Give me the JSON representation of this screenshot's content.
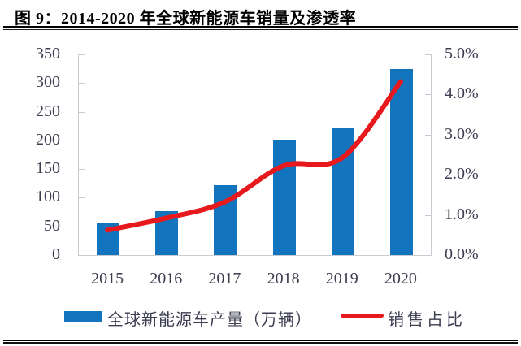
{
  "title": "图 9：2014-2020 年全球新能源车销量及渗透率",
  "colors": {
    "bar": "#1374be",
    "line": "#e8191d",
    "axis_text": "#3d3d52",
    "axis_line": "#c9cbd2",
    "title_text": "#000000"
  },
  "chart_data": {
    "type": "bar",
    "subtype": "bar+line combo, dual y-axis",
    "title": "图 9：2014-2020 年全球新能源车销量及渗透率",
    "categories": [
      "2015",
      "2016",
      "2017",
      "2018",
      "2019",
      "2020"
    ],
    "series": [
      {
        "name": "全球新能源车产量（万辆）",
        "type": "bar",
        "axis": "left",
        "color": "#1374be",
        "values": [
          55,
          77,
          122,
          201,
          221,
          325
        ]
      },
      {
        "name": "销售占比",
        "type": "line",
        "axis": "right",
        "color": "#e8191d",
        "values": [
          0.6,
          0.9,
          1.3,
          2.2,
          2.4,
          4.3
        ]
      }
    ],
    "left_axis": {
      "min": 0,
      "max": 350,
      "step": 50,
      "ticks": [
        "350",
        "300",
        "250",
        "200",
        "150",
        "100",
        "50",
        "0"
      ]
    },
    "right_axis": {
      "min": 0,
      "max": 5,
      "step": 1,
      "ticks": [
        "5.0%",
        "4.0%",
        "3.0%",
        "2.0%",
        "1.0%",
        "0.0%"
      ]
    },
    "grid": false,
    "legend_position": "bottom"
  },
  "legend": {
    "bar_label": "全球新能源车产量（万辆）",
    "line_label": "销售占比"
  }
}
